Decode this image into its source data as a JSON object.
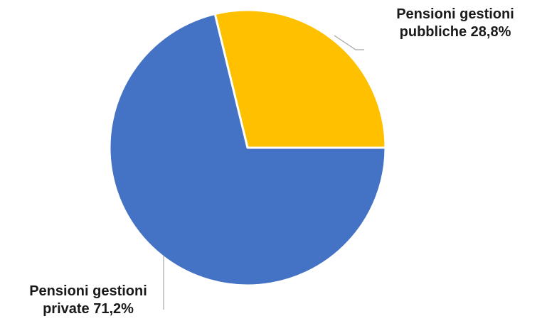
{
  "chart_data": {
    "type": "pie",
    "title": "",
    "slices": [
      {
        "label_line1": "Pensioni gestioni",
        "label_line2": "pubbliche 28,8%",
        "value": 28.8,
        "color": "#FFC000"
      },
      {
        "label_line1": "Pensioni gestioni",
        "label_line2": "private 71,2%",
        "value": 71.2,
        "color": "#4472C4"
      }
    ],
    "start_angle_deg": 0,
    "direction": "counterclockwise-from-east",
    "slice_border_color": "#ffffff",
    "leader_line_color": "#a6a6a6",
    "legend": "none"
  }
}
